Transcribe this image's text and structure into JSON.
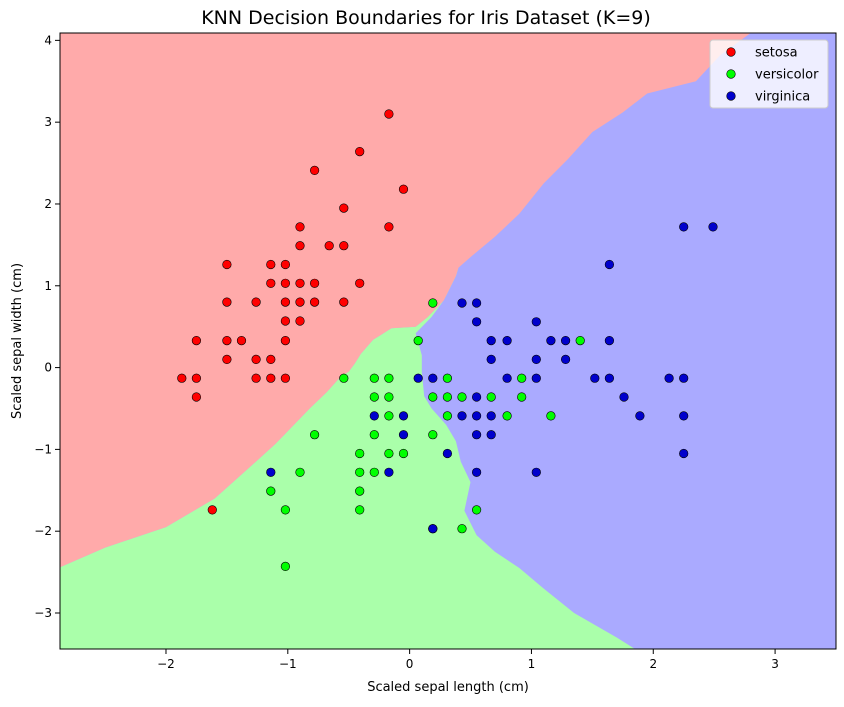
{
  "chart_data": {
    "type": "scatter",
    "title": "KNN Decision Boundaries for Iris Dataset (K=9)",
    "xlabel": "Scaled sepal length (cm)",
    "ylabel": "Scaled sepal width (cm)",
    "xlim": [
      -2.87,
      3.5
    ],
    "ylim": [
      -3.44,
      4.09
    ],
    "x_ticks": [
      -2,
      -1,
      0,
      1,
      2,
      3
    ],
    "x_tick_labels": [
      "−2",
      "−1",
      "0",
      "1",
      "2",
      "3"
    ],
    "y_ticks": [
      -3,
      -2,
      -1,
      0,
      1,
      2,
      3,
      4
    ],
    "y_tick_labels": [
      "−3",
      "−2",
      "−1",
      "0",
      "1",
      "2",
      "3",
      "4"
    ],
    "grid": false,
    "legend_position": "top-right",
    "region_colors": {
      "setosa": "#ffaaaa",
      "versicolor": "#aaffaa",
      "virginica": "#aaaaff"
    },
    "decision_regions": {
      "setosa_outline": [
        [
          -2.87,
          -2.44
        ],
        [
          -2.5,
          -2.2
        ],
        [
          -2.0,
          -1.95
        ],
        [
          -1.6,
          -1.6
        ],
        [
          -1.3,
          -1.2
        ],
        [
          -1.1,
          -0.93
        ],
        [
          -0.95,
          -0.7
        ],
        [
          -0.82,
          -0.5
        ],
        [
          -0.68,
          -0.3
        ],
        [
          -0.56,
          -0.1
        ],
        [
          -0.5,
          -0.05
        ],
        [
          -0.45,
          0.05
        ],
        [
          -0.4,
          0.17
        ],
        [
          -0.3,
          0.34
        ],
        [
          -0.15,
          0.48
        ],
        [
          0.05,
          0.5
        ],
        [
          0.15,
          0.62
        ],
        [
          0.28,
          0.82
        ],
        [
          0.38,
          1.12
        ],
        [
          0.4,
          1.22
        ],
        [
          0.5,
          1.35
        ],
        [
          0.7,
          1.6
        ],
        [
          0.9,
          1.88
        ],
        [
          1.1,
          2.25
        ],
        [
          1.3,
          2.55
        ],
        [
          1.5,
          2.88
        ],
        [
          1.75,
          3.12
        ],
        [
          1.95,
          3.35
        ],
        [
          2.35,
          3.5
        ],
        [
          2.55,
          3.82
        ],
        [
          2.8,
          4.09
        ],
        [
          -2.87,
          4.09
        ]
      ],
      "versicolor_outline": [
        [
          -2.87,
          -3.44
        ],
        [
          1.85,
          -3.44
        ],
        [
          1.7,
          -3.3
        ],
        [
          1.35,
          -3.0
        ],
        [
          1.1,
          -2.7
        ],
        [
          0.9,
          -2.45
        ],
        [
          0.7,
          -2.25
        ],
        [
          0.55,
          -2.05
        ],
        [
          0.45,
          -1.75
        ],
        [
          0.5,
          -1.4
        ],
        [
          0.42,
          -1.15
        ],
        [
          0.38,
          -0.9
        ],
        [
          0.3,
          -0.7
        ],
        [
          0.18,
          -0.5
        ],
        [
          0.12,
          -0.35
        ],
        [
          0.1,
          -0.05
        ],
        [
          0.1,
          0.15
        ],
        [
          0.05,
          0.42
        ],
        [
          0.18,
          0.62
        ],
        [
          0.28,
          0.82
        ],
        [
          0.38,
          1.12
        ],
        [
          0.4,
          1.22
        ],
        [
          0.28,
          0.82
        ],
        [
          0.15,
          0.62
        ],
        [
          0.05,
          0.5
        ],
        [
          -0.15,
          0.48
        ],
        [
          -0.3,
          0.34
        ],
        [
          -0.4,
          0.17
        ],
        [
          -0.45,
          0.05
        ],
        [
          -0.5,
          -0.05
        ],
        [
          -0.56,
          -0.1
        ],
        [
          -0.68,
          -0.3
        ],
        [
          -0.82,
          -0.5
        ],
        [
          -0.95,
          -0.7
        ],
        [
          -1.1,
          -0.93
        ],
        [
          -1.3,
          -1.2
        ],
        [
          -1.6,
          -1.6
        ],
        [
          -2.0,
          -1.95
        ],
        [
          -2.5,
          -2.2
        ],
        [
          -2.87,
          -2.44
        ]
      ]
    },
    "series": [
      {
        "name": "setosa",
        "color": "#ff0000",
        "points": [
          [
            -0.17,
            3.1
          ],
          [
            -0.41,
            2.64
          ],
          [
            -0.05,
            2.18
          ],
          [
            -0.78,
            2.41
          ],
          [
            -0.54,
            1.95
          ],
          [
            -0.9,
            1.72
          ],
          [
            -0.17,
            1.72
          ],
          [
            -0.9,
            1.49
          ],
          [
            -0.66,
            1.49
          ],
          [
            -0.54,
            1.49
          ],
          [
            -1.5,
            1.26
          ],
          [
            -1.14,
            1.26
          ],
          [
            -1.02,
            1.26
          ],
          [
            -1.14,
            1.03
          ],
          [
            -1.02,
            1.03
          ],
          [
            -0.9,
            1.03
          ],
          [
            -0.78,
            1.03
          ],
          [
            -0.41,
            1.03
          ],
          [
            -1.5,
            0.8
          ],
          [
            -1.26,
            0.8
          ],
          [
            -1.02,
            0.8
          ],
          [
            -0.9,
            0.8
          ],
          [
            -0.78,
            0.8
          ],
          [
            -0.54,
            0.8
          ],
          [
            -1.02,
            0.57
          ],
          [
            -0.9,
            0.57
          ],
          [
            -1.75,
            0.33
          ],
          [
            -1.5,
            0.33
          ],
          [
            -1.38,
            0.33
          ],
          [
            -1.02,
            0.33
          ],
          [
            -1.5,
            0.1
          ],
          [
            -1.26,
            0.1
          ],
          [
            -1.14,
            0.1
          ],
          [
            -1.87,
            -0.13
          ],
          [
            -1.75,
            -0.13
          ],
          [
            -1.26,
            -0.13
          ],
          [
            -1.14,
            -0.13
          ],
          [
            -1.02,
            -0.13
          ],
          [
            -1.75,
            -0.36
          ],
          [
            -1.62,
            -1.74
          ]
        ]
      },
      {
        "name": "versicolor",
        "color": "#00ff00",
        "points": [
          [
            0.19,
            0.79
          ],
          [
            0.07,
            0.33
          ],
          [
            1.4,
            0.33
          ],
          [
            0.92,
            -0.13
          ],
          [
            -0.54,
            -0.13
          ],
          [
            -0.29,
            -0.13
          ],
          [
            -0.17,
            -0.13
          ],
          [
            0.31,
            -0.13
          ],
          [
            -0.29,
            -0.36
          ],
          [
            -0.17,
            -0.36
          ],
          [
            0.19,
            -0.36
          ],
          [
            0.31,
            -0.36
          ],
          [
            0.43,
            -0.36
          ],
          [
            0.67,
            -0.36
          ],
          [
            0.92,
            -0.36
          ],
          [
            -0.17,
            -0.59
          ],
          [
            0.31,
            -0.59
          ],
          [
            0.8,
            -0.59
          ],
          [
            1.16,
            -0.59
          ],
          [
            -0.78,
            -0.82
          ],
          [
            -0.29,
            -0.82
          ],
          [
            0.19,
            -0.82
          ],
          [
            -0.41,
            -1.05
          ],
          [
            -0.17,
            -1.05
          ],
          [
            -0.05,
            -1.05
          ],
          [
            -0.41,
            -1.28
          ],
          [
            -0.29,
            -1.28
          ],
          [
            -0.9,
            -1.28
          ],
          [
            -1.14,
            -1.51
          ],
          [
            -0.41,
            -1.51
          ],
          [
            -1.02,
            -1.74
          ],
          [
            -0.41,
            -1.74
          ],
          [
            0.55,
            -1.74
          ],
          [
            0.19,
            -1.97
          ],
          [
            0.43,
            -1.97
          ],
          [
            -1.02,
            -2.43
          ]
        ]
      },
      {
        "name": "virginica",
        "color": "#0000cc",
        "points": [
          [
            2.25,
            1.72
          ],
          [
            2.49,
            1.72
          ],
          [
            1.64,
            1.26
          ],
          [
            0.43,
            0.79
          ],
          [
            0.55,
            0.79
          ],
          [
            0.55,
            0.56
          ],
          [
            1.04,
            0.56
          ],
          [
            0.67,
            0.33
          ],
          [
            0.8,
            0.33
          ],
          [
            1.16,
            0.33
          ],
          [
            1.28,
            0.33
          ],
          [
            1.64,
            0.33
          ],
          [
            0.67,
            0.1
          ],
          [
            1.04,
            0.1
          ],
          [
            1.28,
            0.1
          ],
          [
            0.07,
            -0.13
          ],
          [
            0.19,
            -0.13
          ],
          [
            0.8,
            -0.13
          ],
          [
            1.04,
            -0.13
          ],
          [
            1.52,
            -0.13
          ],
          [
            1.64,
            -0.13
          ],
          [
            2.13,
            -0.13
          ],
          [
            2.25,
            -0.13
          ],
          [
            1.76,
            -0.36
          ],
          [
            0.55,
            -0.36
          ],
          [
            -0.29,
            -0.59
          ],
          [
            -0.05,
            -0.59
          ],
          [
            0.43,
            -0.59
          ],
          [
            0.55,
            -0.59
          ],
          [
            0.67,
            -0.59
          ],
          [
            1.89,
            -0.59
          ],
          [
            2.25,
            -0.59
          ],
          [
            -0.05,
            -0.82
          ],
          [
            0.55,
            -0.82
          ],
          [
            0.67,
            -0.82
          ],
          [
            0.31,
            -1.05
          ],
          [
            2.25,
            -1.05
          ],
          [
            -1.14,
            -1.28
          ],
          [
            -0.17,
            -1.28
          ],
          [
            0.55,
            -1.28
          ],
          [
            1.04,
            -1.28
          ],
          [
            0.19,
            -1.97
          ]
        ]
      }
    ]
  }
}
